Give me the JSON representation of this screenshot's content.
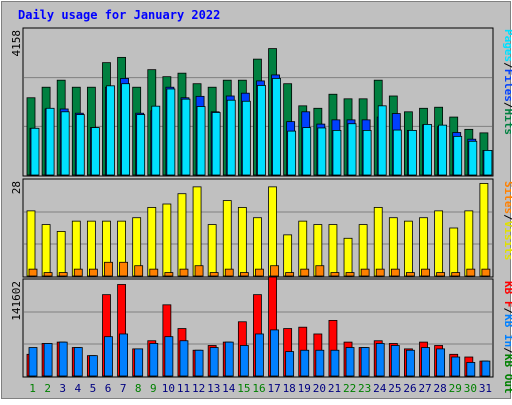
{
  "title": "Daily usage for January 2022",
  "colors": {
    "frame_bg": "#c0c0c0",
    "plot_bg": "#c0c0c0",
    "title_text": "#0000ff",
    "hits": "#008040",
    "files": "#0040ff",
    "pages": "#00e0ff",
    "visits": "#ffff00",
    "sites": "#ff8000",
    "kb_in": "#0080ff",
    "kb_f": "#ff0000",
    "weekday_label": "#000080",
    "weekend_label": "#008000"
  },
  "panels": {
    "top": {
      "max_label": "4158",
      "legend": [
        {
          "text": "Pages",
          "color": "#00e0ff"
        },
        {
          "text": "/",
          "color": "#000000"
        },
        {
          "text": "Files",
          "color": "#0040ff"
        },
        {
          "text": "/",
          "color": "#000000"
        },
        {
          "text": "Hits",
          "color": "#008040"
        }
      ]
    },
    "middle": {
      "max_label": "28",
      "legend": [
        {
          "text": "Sites",
          "color": "#ff8000"
        },
        {
          "text": "/",
          "color": "#000000"
        },
        {
          "text": "Visits",
          "color": "#e0e000"
        }
      ]
    },
    "bottom": {
      "max_label": "141602",
      "legend": [
        {
          "text": "KB F",
          "color": "#ff0000"
        },
        {
          "text": "/",
          "color": "#000000"
        },
        {
          "text": "KB In",
          "color": "#0080ff"
        },
        {
          "text": "/",
          "color": "#000000"
        },
        {
          "text": "KB Out",
          "color": "#008000"
        }
      ]
    }
  },
  "chart_data": {
    "type": "bar",
    "title": "Daily usage for January 2022",
    "categories": [
      "1",
      "2",
      "3",
      "4",
      "5",
      "6",
      "7",
      "8",
      "9",
      "10",
      "11",
      "12",
      "13",
      "14",
      "15",
      "16",
      "17",
      "18",
      "19",
      "20",
      "21",
      "22",
      "23",
      "24",
      "25",
      "26",
      "27",
      "28",
      "29",
      "30",
      "31"
    ],
    "weekend_days": [
      "1",
      "2",
      "8",
      "9",
      "15",
      "16",
      "22",
      "23",
      "29",
      "30"
    ],
    "panels": [
      {
        "name": "top",
        "ylim": [
          0,
          4158
        ],
        "series": [
          {
            "name": "Hits",
            "values": [
              2200,
              2500,
              2700,
              2500,
              2500,
              3200,
              3350,
              2500,
              3000,
              2800,
              2900,
              2600,
              2500,
              2700,
              2700,
              3300,
              3600,
              2600,
              1970,
              1900,
              2300,
              2170,
              2170,
              2700,
              2250,
              1800,
              1900,
              1930,
              1650,
              1300,
              1200
            ]
          },
          {
            "name": "Files",
            "values": [
              1330,
              1880,
              1880,
              1760,
              1350,
              2500,
              2750,
              1760,
              1830,
              2500,
              2200,
              2240,
              1800,
              2250,
              2330,
              2680,
              2850,
              1520,
              1800,
              1450,
              1570,
              1570,
              1570,
              1650,
              1750,
              1270,
              1430,
              1380,
              1210,
              1020,
              700
            ]
          },
          {
            "name": "Pages",
            "values": [
              1330,
              1900,
              1800,
              1720,
              1350,
              2540,
              2600,
              1720,
              1960,
              2450,
              2160,
              1950,
              1780,
              2130,
              2100,
              2550,
              2750,
              1250,
              1350,
              1340,
              1270,
              1460,
              1270,
              1970,
              1280,
              1270,
              1440,
              1420,
              1100,
              960,
              700
            ]
          }
        ]
      },
      {
        "name": "middle",
        "ylim": [
          0,
          28
        ],
        "series": [
          {
            "name": "Visits",
            "values": [
              19,
              15,
              13,
              16,
              16,
              16,
              16,
              17,
              20,
              21,
              24,
              26,
              15,
              22,
              20,
              17,
              26,
              12,
              16,
              15,
              15,
              11,
              15,
              20,
              17,
              16,
              17,
              19,
              14,
              19,
              27
            ]
          },
          {
            "name": "Sites",
            "values": [
              2,
              1,
              1,
              2,
              2,
              4,
              4,
              3,
              2,
              1,
              2,
              3,
              1,
              2,
              1,
              2,
              3,
              1,
              2,
              3,
              1,
              1,
              2,
              2,
              2,
              1,
              2,
              1,
              1,
              2,
              2
            ]
          }
        ]
      },
      {
        "name": "bottom",
        "ylim": [
          0,
          141602
        ],
        "series": [
          {
            "name": "KB F",
            "values": [
              32000,
              48000,
              50000,
              42000,
              30000,
              120000,
              135000,
              40000,
              52000,
              105000,
              70000,
              38000,
              45000,
              50000,
              80000,
              120000,
              146000,
              70000,
              72000,
              62000,
              82000,
              50000,
              42000,
              52000,
              48000,
              40000,
              50000,
              45000,
              32000,
              28000,
              22000
            ]
          },
          {
            "name": "KB In",
            "values": [
              42000,
              48000,
              50000,
              42000,
              30000,
              58000,
              62000,
              40000,
              48000,
              58000,
              52000,
              38000,
              42000,
              50000,
              45000,
              62000,
              68000,
              36000,
              38000,
              38000,
              38000,
              42000,
              42000,
              48000,
              45000,
              38000,
              42000,
              40000,
              28000,
              20000,
              22000
            ]
          },
          {
            "name": "KB Out",
            "values": []
          }
        ]
      }
    ]
  }
}
